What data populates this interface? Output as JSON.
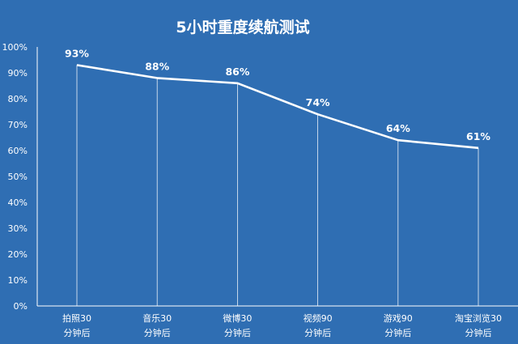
{
  "chart_data": {
    "type": "line",
    "title": "5小时重度续航测试",
    "categories": [
      [
        "拍照30",
        "分钟后"
      ],
      [
        "音乐30",
        "分钟后"
      ],
      [
        "微博30",
        "分钟后"
      ],
      [
        "视频90",
        "分钟后"
      ],
      [
        "游戏90",
        "分钟后"
      ],
      [
        "淘宝浏览30",
        "分钟后"
      ]
    ],
    "values": [
      93,
      88,
      86,
      74,
      64,
      61
    ],
    "data_labels": [
      "93%",
      "88%",
      "86%",
      "74%",
      "64%",
      "61%"
    ],
    "y_ticks": [
      "0%",
      "10%",
      "20%",
      "30%",
      "40%",
      "50%",
      "60%",
      "70%",
      "80%",
      "90%",
      "100%"
    ],
    "ylim": [
      0,
      100
    ],
    "xlabel": "",
    "ylabel": "",
    "grid": false,
    "legend": "none"
  },
  "colors": {
    "background": "#2f6eb3",
    "line": "#ffffff",
    "text": "#ffffff"
  }
}
